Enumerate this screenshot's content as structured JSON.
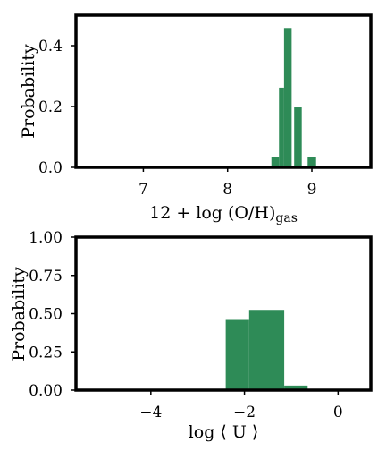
{
  "colors": {
    "bar": "#2e8b57",
    "axes": "#000000",
    "background": "#ffffff"
  },
  "chart_data": [
    {
      "type": "bar",
      "title": "",
      "xlabel_main": "12 + log (O/H)",
      "xlabel_sub": "gas",
      "ylabel": "Probability",
      "xlim": [
        6.2,
        9.7
      ],
      "ylim": [
        0,
        0.5
      ],
      "xticks": [
        7,
        8,
        9
      ],
      "yticks": [
        0.0,
        0.2,
        0.4
      ],
      "ytick_labels": [
        "0.0",
        "0.2",
        "0.4"
      ],
      "grid": false,
      "bins": [
        {
          "x0": 8.52,
          "x1": 8.61,
          "value": 0.033
        },
        {
          "x0": 8.61,
          "x1": 8.67,
          "value": 0.262
        },
        {
          "x0": 8.67,
          "x1": 8.76,
          "value": 0.458
        },
        {
          "x0": 8.79,
          "x1": 8.88,
          "value": 0.197
        },
        {
          "x0": 8.95,
          "x1": 9.05,
          "value": 0.033
        }
      ]
    },
    {
      "type": "bar",
      "title": "",
      "xlabel": "log ⟨ U ⟩",
      "ylabel": "Probability",
      "xlim": [
        -5.6,
        0.7
      ],
      "ylim": [
        0,
        1.0
      ],
      "xticks": [
        -4,
        -2,
        0
      ],
      "xtick_labels": [
        "−4",
        "−2",
        "0"
      ],
      "yticks": [
        0.0,
        0.25,
        0.5,
        0.75,
        1.0
      ],
      "ytick_labels": [
        "0.00",
        "0.25",
        "0.50",
        "0.75",
        "1.00"
      ],
      "grid": false,
      "bins": [
        {
          "x0": -2.4,
          "x1": -1.9,
          "value": 0.459
        },
        {
          "x0": -1.9,
          "x1": -1.15,
          "value": 0.525
        },
        {
          "x0": -1.15,
          "x1": -0.65,
          "value": 0.03
        }
      ]
    }
  ]
}
